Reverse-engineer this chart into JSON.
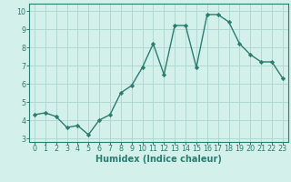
{
  "x": [
    0,
    1,
    2,
    3,
    4,
    5,
    6,
    7,
    8,
    9,
    10,
    11,
    12,
    13,
    14,
    15,
    16,
    17,
    18,
    19,
    20,
    21,
    22,
    23
  ],
  "y": [
    4.3,
    4.4,
    4.2,
    3.6,
    3.7,
    3.2,
    4.0,
    4.3,
    5.5,
    5.9,
    6.9,
    8.2,
    6.5,
    9.2,
    9.2,
    6.9,
    9.8,
    9.8,
    9.4,
    8.2,
    7.6,
    7.2,
    7.2,
    6.3
  ],
  "line_color": "#2a7d70",
  "marker": "D",
  "marker_size": 2.2,
  "line_width": 1.0,
  "bg_color": "#d4f0eb",
  "grid_color": "#b0d8d2",
  "xlabel": "Humidex (Indice chaleur)",
  "xlim": [
    -0.5,
    23.5
  ],
  "ylim": [
    2.8,
    10.4
  ],
  "yticks": [
    3,
    4,
    5,
    6,
    7,
    8,
    9,
    10
  ],
  "xticks": [
    0,
    1,
    2,
    3,
    4,
    5,
    6,
    7,
    8,
    9,
    10,
    11,
    12,
    13,
    14,
    15,
    16,
    17,
    18,
    19,
    20,
    21,
    22,
    23
  ],
  "xlabel_color": "#2a7d70",
  "tick_color": "#2a7d70",
  "axes_color": "#2a7d70",
  "label_fontsize": 7.0,
  "tick_fontsize": 5.8
}
